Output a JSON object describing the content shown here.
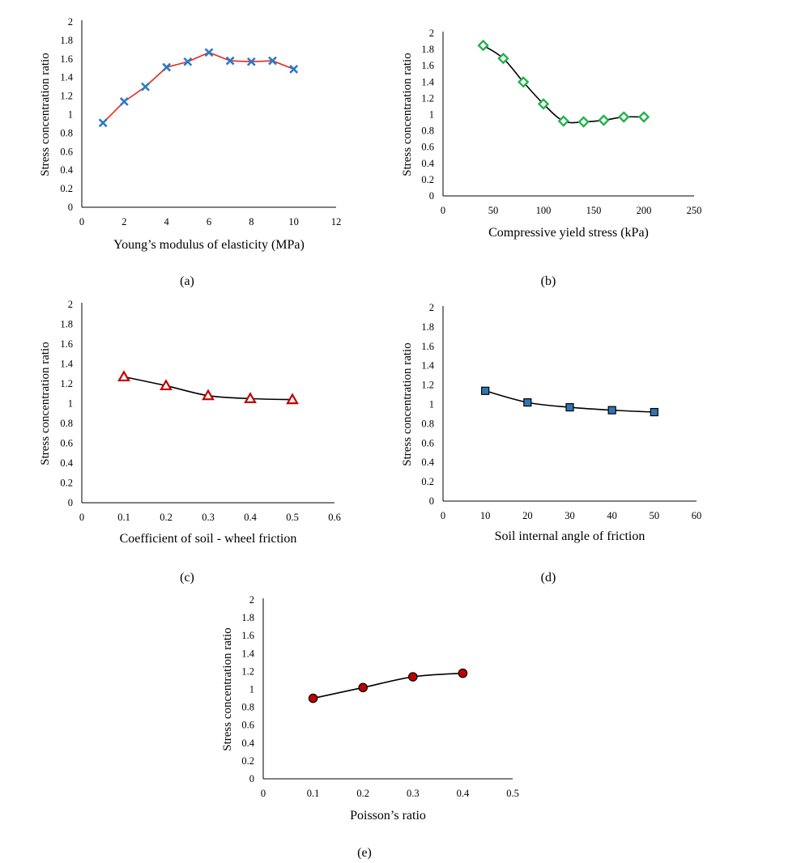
{
  "chart_data": [
    {
      "id": "a",
      "caption": "(a)",
      "type": "line",
      "xlabel": "Young’s modulus of elasticity (MPa)",
      "ylabel": "Stress concentration ratio",
      "xlim": [
        0,
        12
      ],
      "ylim": [
        0,
        2
      ],
      "xticks": [
        0,
        2,
        4,
        6,
        8,
        10,
        12
      ],
      "yticks": [
        0,
        0.2,
        0.4,
        0.6,
        0.8,
        1,
        1.2,
        1.4,
        1.6,
        1.8,
        2
      ],
      "x": [
        1,
        2,
        3,
        4,
        5,
        6,
        7,
        8,
        9,
        10
      ],
      "y": [
        0.91,
        1.14,
        1.3,
        1.51,
        1.57,
        1.67,
        1.58,
        1.57,
        1.58,
        1.49
      ],
      "marker": "x",
      "marker_color": "#2b7bc4",
      "line_color": "#e8281f",
      "smooth": false,
      "grid": false
    },
    {
      "id": "b",
      "caption": "(b)",
      "type": "line",
      "xlabel": "Compressive yield stress (kPa)",
      "ylabel": "Stress concentration ratio",
      "xlim": [
        0,
        250
      ],
      "ylim": [
        0,
        2
      ],
      "xticks": [
        0,
        50,
        100,
        150,
        200,
        250
      ],
      "yticks": [
        0,
        0.2,
        0.4,
        0.6,
        0.8,
        1,
        1.2,
        1.4,
        1.6,
        1.8,
        2
      ],
      "x": [
        40,
        60,
        80,
        100,
        120,
        140,
        160,
        180,
        200
      ],
      "y": [
        1.85,
        1.69,
        1.4,
        1.13,
        0.92,
        0.91,
        0.93,
        0.97,
        0.97
      ],
      "marker": "diamond",
      "marker_color": "#22b14c",
      "line_color": "#000000",
      "smooth": true,
      "grid": false
    },
    {
      "id": "c",
      "caption": "(c)",
      "type": "line",
      "xlabel": "Coefficient of soil - wheel friction",
      "ylabel": "Stress concentration ratio",
      "xlim": [
        0,
        0.6
      ],
      "ylim": [
        0,
        2
      ],
      "xticks": [
        0,
        0.1,
        0.2,
        0.3,
        0.4,
        0.5,
        0.6
      ],
      "yticks": [
        0,
        0.2,
        0.4,
        0.6,
        0.8,
        1,
        1.2,
        1.4,
        1.6,
        1.8,
        2
      ],
      "x": [
        0.1,
        0.2,
        0.3,
        0.4,
        0.5
      ],
      "y": [
        1.27,
        1.18,
        1.08,
        1.05,
        1.04
      ],
      "marker": "triangle",
      "marker_color": "#c00000",
      "line_color": "#000000",
      "smooth": true,
      "grid": false
    },
    {
      "id": "d",
      "caption": "(d)",
      "type": "line",
      "xlabel": "Soil internal angle of friction",
      "ylabel": "Stress concentration ratio",
      "xlim": [
        0,
        60
      ],
      "ylim": [
        0,
        2
      ],
      "xticks": [
        0,
        10,
        20,
        30,
        40,
        50,
        60
      ],
      "yticks": [
        0,
        0.2,
        0.4,
        0.6,
        0.8,
        1,
        1.2,
        1.4,
        1.6,
        1.8,
        2
      ],
      "x": [
        10,
        20,
        30,
        40,
        50
      ],
      "y": [
        1.14,
        1.02,
        0.97,
        0.94,
        0.92
      ],
      "marker": "square",
      "marker_color": "#2e75b6",
      "line_color": "#000000",
      "smooth": true,
      "grid": false
    },
    {
      "id": "e",
      "caption": "(e)",
      "type": "line",
      "xlabel": "Poisson’s ratio",
      "ylabel": "Stress concentration ratio",
      "xlim": [
        0,
        0.5
      ],
      "ylim": [
        0,
        2
      ],
      "xticks": [
        0,
        0.1,
        0.2,
        0.3,
        0.4,
        0.5
      ],
      "yticks": [
        0,
        0.2,
        0.4,
        0.6,
        0.8,
        1,
        1.2,
        1.4,
        1.6,
        1.8,
        2
      ],
      "x": [
        0.1,
        0.2,
        0.3,
        0.4
      ],
      "y": [
        0.9,
        1.02,
        1.14,
        1.18
      ],
      "marker": "circle",
      "marker_color": "#c00000",
      "line_color": "#000000",
      "smooth": true,
      "grid": false
    }
  ]
}
